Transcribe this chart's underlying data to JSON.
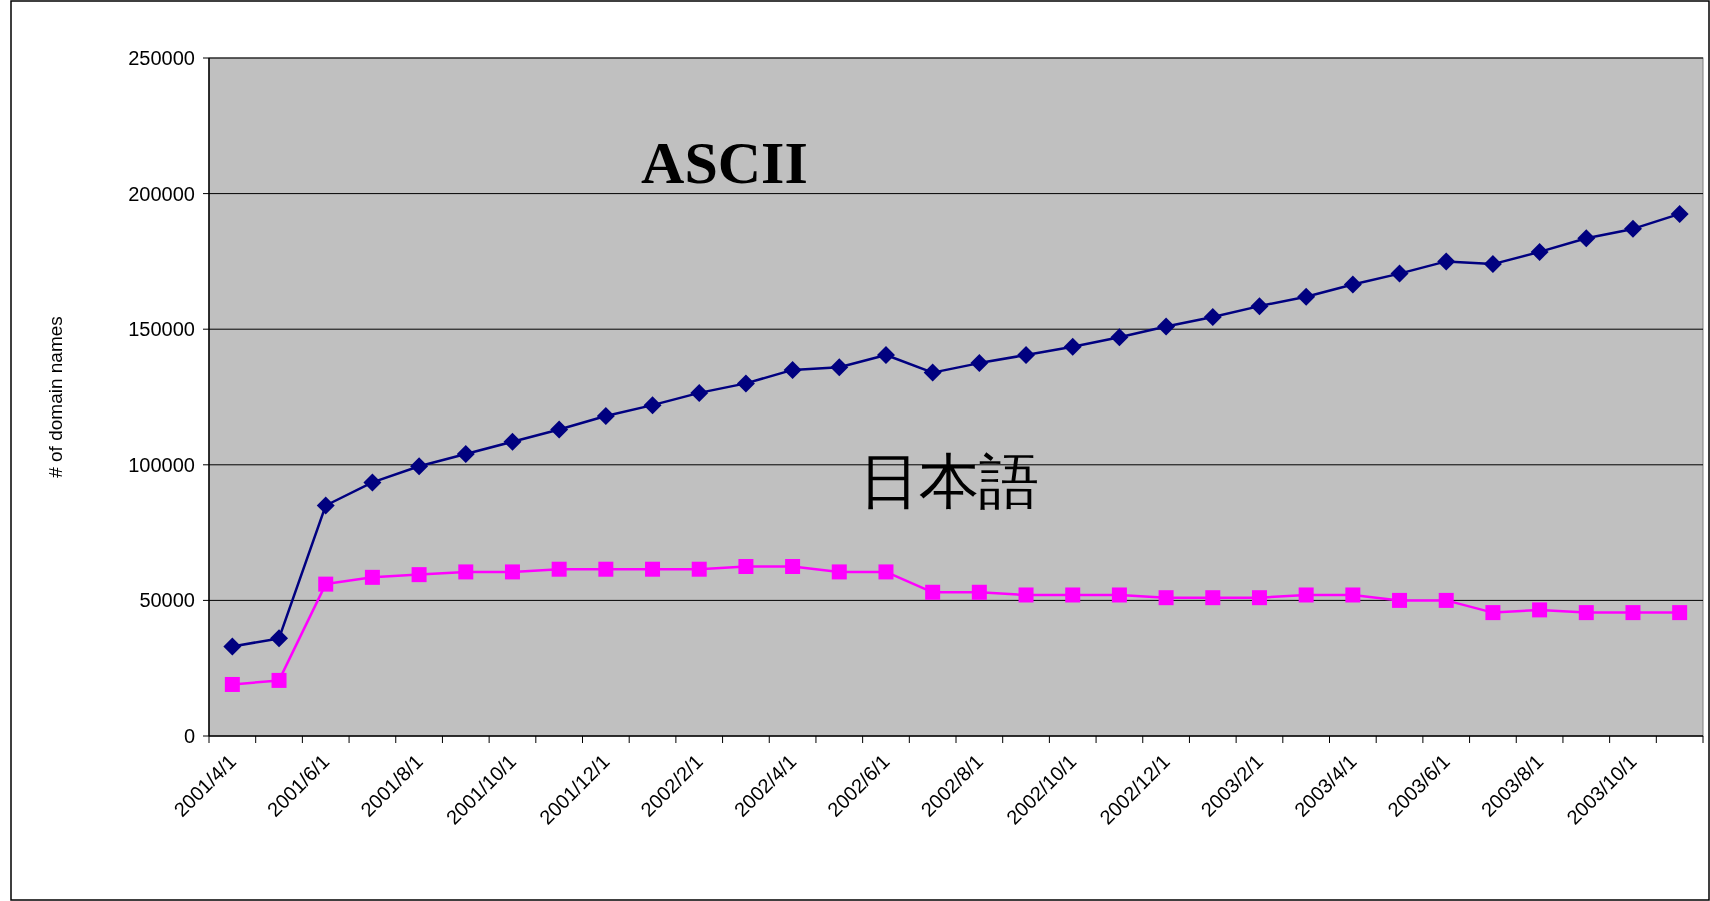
{
  "chart_data": {
    "type": "line",
    "ylabel": "# of domain names",
    "categories": [
      "2001/4/1",
      null,
      "2001/6/1",
      null,
      "2001/8/1",
      null,
      "2001/10/1",
      null,
      "2001/12/1",
      null,
      "2002/2/1",
      null,
      "2002/4/1",
      null,
      "2002/6/1",
      null,
      "2002/8/1",
      null,
      "2002/10/1",
      null,
      "2002/12/1",
      null,
      "2003/2/1",
      null,
      "2003/4/1",
      null,
      "2003/6/1",
      null,
      "2003/8/1",
      null,
      "2003/10/1",
      null
    ],
    "series": [
      {
        "name": "ASCII",
        "color": "#000080",
        "marker": "diamond",
        "values": [
          33000,
          36000,
          85000,
          93500,
          99500,
          104000,
          108500,
          113000,
          118000,
          122000,
          126500,
          130000,
          135000,
          136000,
          140500,
          134000,
          137500,
          140500,
          143500,
          147000,
          151000,
          154500,
          158500,
          162000,
          166500,
          170500,
          175000,
          174000,
          178500,
          183500,
          187000,
          192500
        ]
      },
      {
        "name": "日本語",
        "color": "#ff00ff",
        "marker": "square",
        "values": [
          19000,
          20500,
          56000,
          58500,
          59500,
          60500,
          60500,
          61500,
          61500,
          61500,
          61500,
          62500,
          62500,
          60500,
          60500,
          53000,
          53000,
          52000,
          52000,
          52000,
          51000,
          51000,
          51000,
          52000,
          52000,
          50000,
          50000,
          45500,
          46500,
          45500,
          45500,
          45500
        ]
      }
    ],
    "ylim": [
      0,
      250000
    ],
    "yticks": [
      0,
      50000,
      100000,
      150000,
      200000,
      250000
    ],
    "grid": "y",
    "legend": false
  }
}
